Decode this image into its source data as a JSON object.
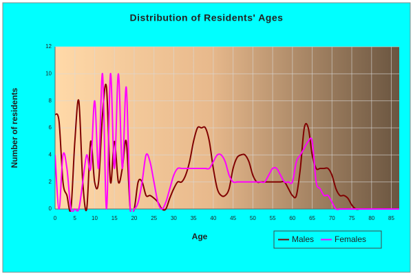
{
  "chart_data": {
    "type": "line",
    "title": "Distribution of Residents' Ages",
    "x_label": "Age",
    "y_label": "Number of residents",
    "x": [
      0,
      1,
      2,
      3,
      4,
      5,
      6,
      7,
      8,
      9,
      10,
      11,
      12,
      13,
      14,
      15,
      16,
      17,
      18,
      19,
      20,
      21,
      22,
      23,
      24,
      25,
      26,
      27,
      28,
      29,
      30,
      31,
      32,
      33,
      34,
      35,
      36,
      37,
      38,
      39,
      40,
      41,
      42,
      43,
      44,
      45,
      46,
      47,
      48,
      49,
      50,
      51,
      52,
      53,
      54,
      55,
      56,
      57,
      58,
      59,
      60,
      61,
      62,
      63,
      64,
      65,
      66,
      67,
      68,
      69,
      70,
      71,
      72,
      73,
      74,
      75,
      76,
      77,
      78,
      79,
      80,
      81,
      82,
      83,
      84,
      85,
      86,
      87
    ],
    "series": [
      {
        "name": "Males",
        "color": "#800000",
        "values": [
          7,
          6.5,
          2,
          1,
          0,
          5,
          8,
          2,
          0,
          5,
          2,
          2,
          7,
          9,
          2,
          5,
          2,
          3,
          5,
          0,
          0,
          2,
          2,
          1,
          1,
          0.8,
          0.5,
          0,
          0,
          0.8,
          1.5,
          2,
          2,
          2.5,
          3.5,
          5,
          6,
          6,
          6,
          5,
          3,
          1.5,
          1,
          1,
          1.5,
          3,
          3.8,
          4,
          4,
          3.5,
          2.5,
          2,
          2,
          2,
          2,
          2,
          2,
          2,
          2,
          1.5,
          1,
          1,
          3,
          6,
          6,
          4,
          3,
          3,
          3,
          3,
          2.5,
          1.5,
          1,
          1,
          0.8,
          0.3,
          0,
          0,
          0,
          0,
          0,
          0,
          0,
          0,
          0,
          0,
          0,
          0
        ]
      },
      {
        "name": "Females",
        "color": "#ff00ff",
        "values": [
          4,
          0,
          4,
          3,
          0,
          0,
          0,
          2,
          4,
          3,
          8,
          3,
          10,
          0,
          10,
          3,
          10,
          3,
          9,
          0,
          0,
          0.5,
          2,
          4,
          3.5,
          2,
          0.5,
          0,
          0.5,
          1.5,
          2.5,
          3,
          3,
          3,
          3,
          3,
          3,
          3,
          3,
          3,
          3.5,
          4,
          4,
          3.5,
          2.5,
          2,
          2,
          2,
          2,
          2,
          2,
          2,
          2,
          2,
          2.5,
          3,
          3,
          2.5,
          2,
          2,
          2,
          3.5,
          4,
          4.5,
          5,
          5,
          2,
          1.5,
          1,
          1,
          0.5,
          0,
          0,
          0,
          0,
          0,
          0,
          0,
          0,
          0,
          0,
          0,
          0,
          0,
          0,
          0,
          0,
          0
        ]
      }
    ],
    "xlim": [
      0,
      87
    ],
    "xticks": [
      0,
      5,
      10,
      15,
      20,
      25,
      30,
      35,
      40,
      45,
      50,
      55,
      60,
      65,
      70,
      75,
      80,
      85
    ],
    "ylim": [
      0,
      12
    ],
    "yticks": [
      0,
      2,
      4,
      6,
      8,
      10,
      12
    ],
    "grid": true,
    "legend": "bottom-right"
  }
}
